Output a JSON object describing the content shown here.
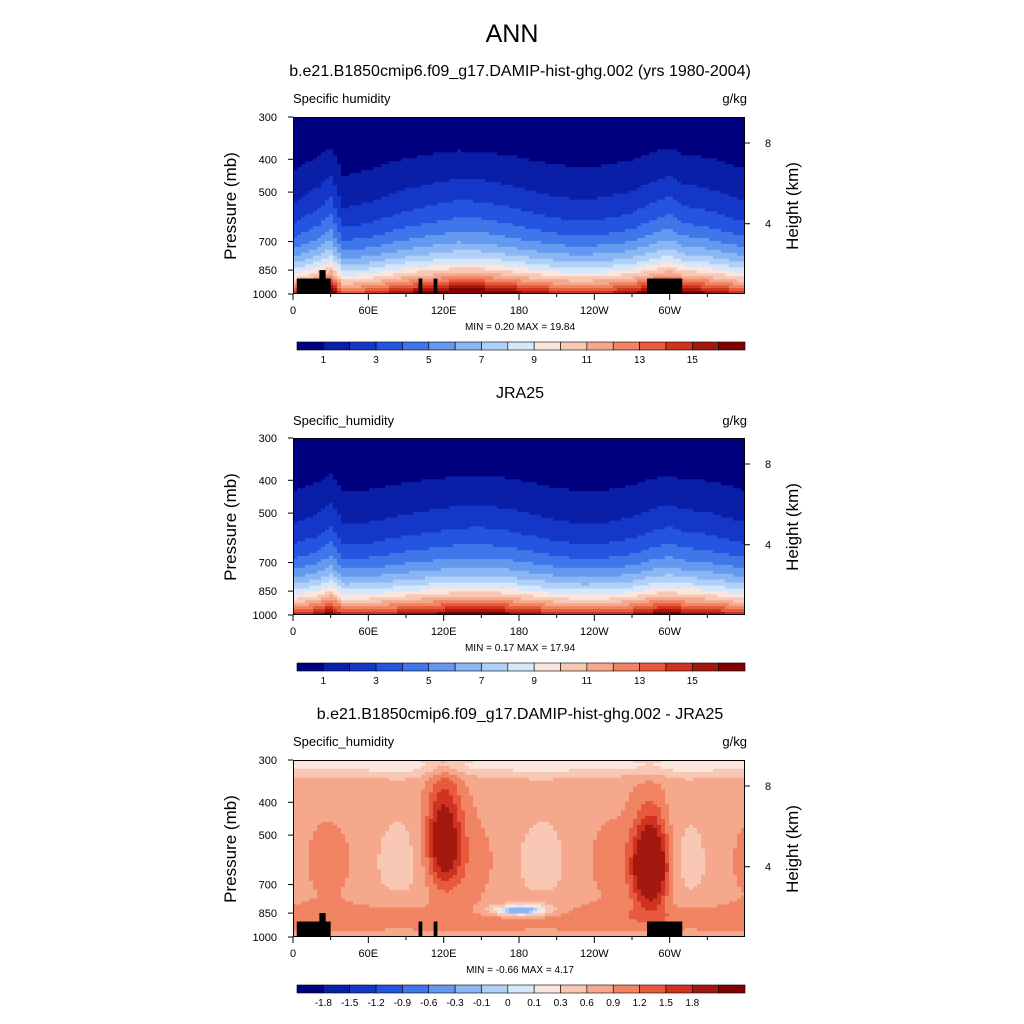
{
  "figure": {
    "title": "ANN"
  },
  "colors": {
    "seq": [
      "#00007f",
      "#0a1fa8",
      "#1537c8",
      "#2555e0",
      "#3f77ea",
      "#6499f0",
      "#8ab6f4",
      "#b0d0f8",
      "#d6e6fb",
      "#fbe6de",
      "#f8c8b5",
      "#f5a88c",
      "#f08463",
      "#e85a3d",
      "#cf3320",
      "#a3190f",
      "#7f0000"
    ],
    "diff": [
      "#00007f",
      "#0a1fa8",
      "#1537c8",
      "#2555e0",
      "#3f77ea",
      "#6499f0",
      "#8ab6f4",
      "#b0d0f8",
      "#d6e6fb",
      "#fbe6de",
      "#f8c8b5",
      "#f5a88c",
      "#f08463",
      "#e85a3d",
      "#cf3320",
      "#a3190f",
      "#7f0000"
    ],
    "mask": "#000000"
  },
  "panels": [
    {
      "title": "b.e21.B1850cmip6.f09_g17.DAMIP-hist-ghg.002 (yrs 1980-2004)",
      "left_label": "Specific humidity",
      "right_label": "g/kg",
      "y_label": "Pressure (mb)",
      "y2_label": "Height (km)",
      "y_ticks": [
        "300",
        "400",
        "500",
        "700",
        "850",
        "1000"
      ],
      "y2_ticks": [
        "8",
        "4"
      ],
      "x_ticks": [
        "0",
        "60E",
        "120E",
        "180",
        "120W",
        "60W"
      ],
      "minmax": "MIN =   0.20  MAX =  19.84",
      "colorbar_labels": [
        "1",
        "3",
        "5",
        "7",
        "9",
        "11",
        "13",
        "15"
      ]
    },
    {
      "title": "JRA25",
      "left_label": "Specific_humidity",
      "right_label": "g/kg",
      "y_label": "Pressure (mb)",
      "y2_label": "Height (km)",
      "y_ticks": [
        "300",
        "400",
        "500",
        "700",
        "850",
        "1000"
      ],
      "y2_ticks": [
        "8",
        "4"
      ],
      "x_ticks": [
        "0",
        "60E",
        "120E",
        "180",
        "120W",
        "60W"
      ],
      "minmax": "MIN =   0.17  MAX =  17.94",
      "colorbar_labels": [
        "1",
        "3",
        "5",
        "7",
        "9",
        "11",
        "13",
        "15"
      ]
    },
    {
      "title": "b.e21.B1850cmip6.f09_g17.DAMIP-hist-ghg.002 - JRA25",
      "left_label": "Specific_humidity",
      "right_label": "g/kg",
      "y_label": "Pressure (mb)",
      "y2_label": "Height (km)",
      "y_ticks": [
        "300",
        "400",
        "500",
        "700",
        "850",
        "1000"
      ],
      "y2_ticks": [
        "8",
        "4"
      ],
      "x_ticks": [
        "0",
        "60E",
        "120E",
        "180",
        "120W",
        "60W"
      ],
      "minmax": "MIN =  -0.66  MAX =   4.17",
      "colorbar_labels": [
        "-1.8",
        "-1.5",
        "-1.2",
        "-0.9",
        "-0.6",
        "-0.3",
        "-0.1",
        "0",
        "0.1",
        "0.3",
        "0.6",
        "0.9",
        "1.2",
        "1.5",
        "1.8"
      ]
    }
  ],
  "chart_data": [
    {
      "type": "heatmap",
      "title": "b.e21.B1850cmip6.f09_g17.DAMIP-hist-ghg.002 (yrs 1980-2004)",
      "field": "Specific humidity",
      "units": "g/kg",
      "xlabel": "",
      "ylabel": "Pressure (mb)",
      "y2label": "Height (km)",
      "x_ticks": [
        0,
        60,
        120,
        180,
        240,
        300
      ],
      "x_range": [
        0,
        360
      ],
      "y_range": [
        300,
        1000
      ],
      "y_ticks": [
        300,
        400,
        500,
        700,
        850,
        1000
      ],
      "y2_ticks_km": [
        8,
        4
      ],
      "levels": [
        1,
        2,
        3,
        4,
        5,
        6,
        7,
        8,
        9,
        10,
        11,
        12,
        13,
        14,
        15,
        16
      ],
      "min": 0.2,
      "max": 19.84,
      "profile_x": [
        0,
        20,
        30,
        40,
        60,
        90,
        110,
        130,
        150,
        170,
        190,
        210,
        230,
        250,
        270,
        285,
        300,
        310,
        330,
        360
      ],
      "profile_t": [
        1.5,
        3.0,
        4.4,
        1.0,
        1.5,
        2.8,
        3.4,
        4.0,
        3.9,
        3.3,
        2.6,
        2.0,
        1.8,
        2.0,
        2.6,
        3.6,
        4.5,
        3.4,
        2.9,
        1.6
      ],
      "masks": [
        {
          "x0": 3,
          "x1": 30,
          "p0": 900,
          "p1": 1000
        },
        {
          "x0": 21,
          "x1": 26,
          "p0": 850,
          "p1": 1000
        },
        {
          "x0": 100,
          "x1": 103,
          "p0": 900,
          "p1": 1000
        },
        {
          "x0": 112,
          "x1": 115,
          "p0": 900,
          "p1": 1000
        },
        {
          "x0": 282,
          "x1": 310,
          "p0": 900,
          "p1": 1000
        }
      ]
    },
    {
      "type": "heatmap",
      "title": "JRA25",
      "field": "Specific_humidity",
      "units": "g/kg",
      "xlabel": "",
      "ylabel": "Pressure (mb)",
      "y2label": "Height (km)",
      "x_ticks": [
        0,
        60,
        120,
        180,
        240,
        300
      ],
      "x_range": [
        0,
        360
      ],
      "y_range": [
        300,
        1000
      ],
      "y_ticks": [
        300,
        400,
        500,
        700,
        850,
        1000
      ],
      "y2_ticks_km": [
        8,
        4
      ],
      "levels": [
        1,
        2,
        3,
        4,
        5,
        6,
        7,
        8,
        9,
        10,
        11,
        12,
        13,
        14,
        15,
        16
      ],
      "min": 0.17,
      "max": 17.94,
      "profile_x": [
        0,
        20,
        30,
        40,
        60,
        90,
        110,
        130,
        150,
        170,
        190,
        210,
        230,
        250,
        270,
        285,
        300,
        310,
        330,
        360
      ],
      "profile_t": [
        1.5,
        2.4,
        3.6,
        1.5,
        1.6,
        2.4,
        2.8,
        3.2,
        3.3,
        3.0,
        2.4,
        1.8,
        1.5,
        1.6,
        2.1,
        2.9,
        3.4,
        2.9,
        2.6,
        1.6
      ],
      "masks": []
    },
    {
      "type": "heatmap",
      "title": "b.e21.B1850cmip6.f09_g17.DAMIP-hist-ghg.002 - JRA25",
      "field": "Specific_humidity",
      "units": "g/kg",
      "xlabel": "",
      "ylabel": "Pressure (mb)",
      "y2label": "Height (km)",
      "x_ticks": [
        0,
        60,
        120,
        180,
        240,
        300
      ],
      "x_range": [
        0,
        360
      ],
      "y_range": [
        300,
        1000
      ],
      "y_ticks": [
        300,
        400,
        500,
        700,
        850,
        1000
      ],
      "y2_ticks_km": [
        8,
        4
      ],
      "levels": [
        -1.8,
        -1.5,
        -1.2,
        -0.9,
        -0.6,
        -0.3,
        -0.1,
        0,
        0.1,
        0.3,
        0.6,
        0.9,
        1.2,
        1.5,
        1.8
      ],
      "min": -0.66,
      "max": 4.17,
      "features": [
        {
          "x": 180,
          "p": 835,
          "value": -0.6,
          "note": "negative anomaly over central Pacific near 850 mb"
        },
        {
          "x": 285,
          "p": 620,
          "value": 2.2,
          "note": "strong positive anomaly near 75W"
        },
        {
          "x": 120,
          "p": 520,
          "value": 1.5,
          "note": "positive anomaly near 120E"
        }
      ],
      "masks": [
        {
          "x0": 3,
          "x1": 30,
          "p0": 900,
          "p1": 1000
        },
        {
          "x0": 21,
          "x1": 26,
          "p0": 850,
          "p1": 1000
        },
        {
          "x0": 100,
          "x1": 103,
          "p0": 900,
          "p1": 1000
        },
        {
          "x0": 112,
          "x1": 115,
          "p0": 900,
          "p1": 1000
        },
        {
          "x0": 282,
          "x1": 310,
          "p0": 900,
          "p1": 1000
        }
      ]
    }
  ]
}
